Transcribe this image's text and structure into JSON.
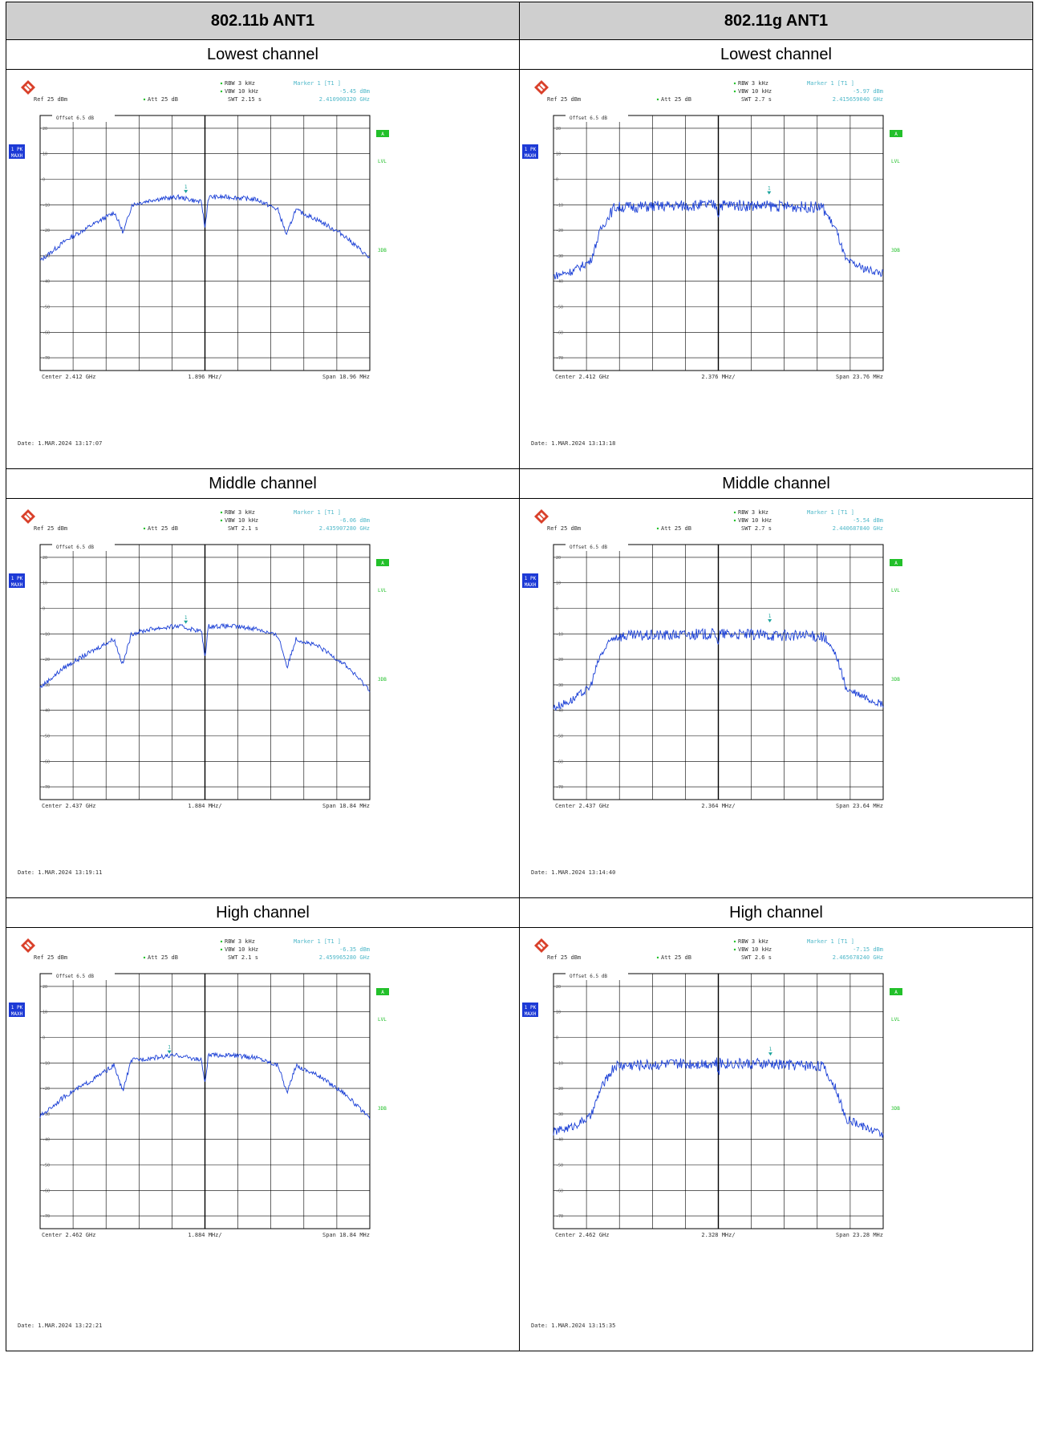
{
  "colors": {
    "header_bg": "#cfcfcf",
    "trace": "#1a3fd6",
    "marker": "#1ba39c",
    "readout": "#4fb8c9",
    "status_green": "#22c02a",
    "panel_blue": "#1d3ad6"
  },
  "columns": [
    "802.11b ANT1",
    "802.11g ANT1"
  ],
  "rows": [
    {
      "label": "Lowest channel",
      "plots": [
        {
          "rbw": "RBW 3 kHz",
          "vbw": "VBW 10 kHz",
          "swt": "SWT 2.15 s",
          "ref": "Ref  25 dBm",
          "att": "Att  25 dB",
          "marker_title": "Marker 1 [T1 ]",
          "marker_level": "-5.45 dBm",
          "marker_freq": "2.410900320 GHz",
          "offset": "Offset  6.5 dB",
          "center": "Center  2.412 GHz",
          "perdiv": "1.896 MHz/",
          "span": "Span  18.96 MHz",
          "date": "Date: 1.MAR.2024  13:17:07"
        },
        {
          "rbw": "RBW 3 kHz",
          "vbw": "VBW 10 kHz",
          "swt": "SWT 2.7 s",
          "ref": "Ref  25 dBm",
          "att": "Att  25 dB",
          "marker_title": "Marker 1 [T1 ]",
          "marker_level": "-5.97 dBm",
          "marker_freq": "2.415659040 GHz",
          "offset": "Offset  6.5 dB",
          "center": "Center  2.412 GHz",
          "perdiv": "2.376 MHz/",
          "span": "Span  23.76 MHz",
          "date": "Date: 1.MAR.2024  13:13:18"
        }
      ]
    },
    {
      "label": "Middle channel",
      "plots": [
        {
          "rbw": "RBW 3 kHz",
          "vbw": "VBW 10 kHz",
          "swt": "SWT 2.1 s",
          "ref": "Ref  25 dBm",
          "att": "Att  25 dB",
          "marker_title": "Marker 1 [T1 ]",
          "marker_level": "-6.06 dBm",
          "marker_freq": "2.435907280 GHz",
          "offset": "Offset  6.5 dB",
          "center": "Center  2.437 GHz",
          "perdiv": "1.884 MHz/",
          "span": "Span  18.84 MHz",
          "date": "Date: 1.MAR.2024  13:19:11"
        },
        {
          "rbw": "RBW 3 kHz",
          "vbw": "VBW 10 kHz",
          "swt": "SWT 2.7 s",
          "ref": "Ref  25 dBm",
          "att": "Att  25 dB",
          "marker_title": "Marker 1 [T1 ]",
          "marker_level": "-5.54 dBm",
          "marker_freq": "2.440687840 GHz",
          "offset": "Offset  6.5 dB",
          "center": "Center  2.437 GHz",
          "perdiv": "2.364 MHz/",
          "span": "Span  23.64 MHz",
          "date": "Date: 1.MAR.2024  13:14:40"
        }
      ]
    },
    {
      "label": "High channel",
      "plots": [
        {
          "rbw": "RBW 3 kHz",
          "vbw": "VBW 10 kHz",
          "swt": "SWT 2.1 s",
          "ref": "Ref  25 dBm",
          "att": "Att  25 dB",
          "marker_title": "Marker 1 [T1 ]",
          "marker_level": "-6.35 dBm",
          "marker_freq": "2.459965280 GHz",
          "offset": "Offset  6.5 dB",
          "center": "Center  2.462 GHz",
          "perdiv": "1.884 MHz/",
          "span": "Span  18.84 MHz",
          "date": "Date: 1.MAR.2024  13:22:21"
        },
        {
          "rbw": "RBW 3 kHz",
          "vbw": "VBW 10 kHz",
          "swt": "SWT 2.6 s",
          "ref": "Ref  25 dBm",
          "att": "Att  25 dB",
          "marker_title": "Marker 1 [T1 ]",
          "marker_level": "-7.15 dBm",
          "marker_freq": "2.465678240 GHz",
          "offset": "Offset  6.5 dB",
          "center": "Center  2.462 GHz",
          "perdiv": "2.328 MHz/",
          "span": "Span  23.28 MHz",
          "date": "Date: 1.MAR.2024  13:15:35"
        }
      ]
    }
  ],
  "panel_labels": {
    "trace_box_1": "1 PK",
    "trace_box_2": "MAXH",
    "a_box": "A",
    "lvl": "LVL",
    "tdb": "3DB",
    "marker_num": "1"
  },
  "chart_data": [
    {
      "type": "line",
      "standard": "802.11b",
      "ylim": [
        -75,
        25
      ],
      "xlim": [
        2402.52,
        2421.48
      ],
      "y_ticks": [
        20,
        10,
        0,
        -10,
        -20,
        -30,
        -40,
        -50,
        -60,
        -70
      ],
      "grid": true,
      "marker": {
        "x": 2410.90032,
        "y": -5.45
      },
      "series": [
        {
          "shape": "dsss",
          "x_center": 2412,
          "x": [
            2402.52,
            2404.0,
            2405.5,
            2406.8,
            2407.3,
            2407.8,
            2409.0,
            2410.5,
            2411.8,
            2412.0,
            2412.2,
            2413.5,
            2415.0,
            2416.2,
            2416.7,
            2417.2,
            2418.5,
            2420.0,
            2421.48
          ],
          "y": [
            -32,
            -24,
            -18,
            -13,
            -21,
            -10,
            -8,
            -7,
            -9,
            -19,
            -7,
            -7,
            -8,
            -12,
            -22,
            -12,
            -16,
            -22,
            -31
          ]
        }
      ]
    },
    {
      "type": "line",
      "standard": "802.11g",
      "ylim": [
        -75,
        25
      ],
      "xlim": [
        2400.12,
        2423.88
      ],
      "y_ticks": [
        20,
        10,
        0,
        -10,
        -20,
        -30,
        -40,
        -50,
        -60,
        -70
      ],
      "grid": true,
      "marker": {
        "x": 2415.65904,
        "y": -5.97
      },
      "series": [
        {
          "shape": "ofdm",
          "x_center": 2412,
          "x": [
            2400.12,
            2401.5,
            2402.8,
            2403.5,
            2404.5,
            2412.0,
            2419.5,
            2420.5,
            2421.2,
            2422.5,
            2423.88
          ],
          "y": [
            -38,
            -36,
            -32,
            -20,
            -11,
            -10,
            -11,
            -20,
            -32,
            -35,
            -37
          ]
        }
      ]
    },
    {
      "type": "line",
      "standard": "802.11b",
      "ylim": [
        -75,
        25
      ],
      "xlim": [
        2427.58,
        2446.42
      ],
      "y_ticks": [
        20,
        10,
        0,
        -10,
        -20,
        -30,
        -40,
        -50,
        -60,
        -70
      ],
      "grid": true,
      "marker": {
        "x": 2435.90728,
        "y": -6.06
      },
      "series": [
        {
          "shape": "dsss",
          "x_center": 2437,
          "x": [
            2427.58,
            2429.0,
            2430.5,
            2431.8,
            2432.3,
            2432.8,
            2434.0,
            2435.5,
            2436.8,
            2437.0,
            2437.2,
            2438.5,
            2440.0,
            2441.2,
            2441.7,
            2442.2,
            2443.5,
            2445.0,
            2446.42
          ],
          "y": [
            -31,
            -23,
            -17,
            -12,
            -22,
            -10,
            -8,
            -7,
            -9,
            -19,
            -7,
            -7,
            -8,
            -11,
            -23,
            -12,
            -15,
            -22,
            -32
          ]
        }
      ]
    },
    {
      "type": "line",
      "standard": "802.11g",
      "ylim": [
        -75,
        25
      ],
      "xlim": [
        2425.18,
        2448.82
      ],
      "y_ticks": [
        20,
        10,
        0,
        -10,
        -20,
        -30,
        -40,
        -50,
        -60,
        -70
      ],
      "grid": true,
      "marker": {
        "x": 2440.68784,
        "y": -5.54
      },
      "series": [
        {
          "shape": "ofdm",
          "x_center": 2437,
          "x": [
            2425.18,
            2426.5,
            2427.8,
            2428.5,
            2429.5,
            2437.0,
            2444.5,
            2445.5,
            2446.2,
            2447.5,
            2448.82
          ],
          "y": [
            -39,
            -36,
            -31,
            -19,
            -11,
            -10,
            -11,
            -19,
            -32,
            -35,
            -38
          ]
        }
      ]
    },
    {
      "type": "line",
      "standard": "802.11b",
      "ylim": [
        -75,
        25
      ],
      "xlim": [
        2452.58,
        2471.42
      ],
      "y_ticks": [
        20,
        10,
        0,
        -10,
        -20,
        -30,
        -40,
        -50,
        -60,
        -70
      ],
      "grid": true,
      "marker": {
        "x": 2459.96528,
        "y": -6.35
      },
      "series": [
        {
          "shape": "dsss",
          "x_center": 2462,
          "x": [
            2452.58,
            2454.0,
            2455.5,
            2456.8,
            2457.3,
            2457.8,
            2459.0,
            2460.5,
            2461.8,
            2462.0,
            2462.2,
            2463.5,
            2465.0,
            2466.2,
            2466.7,
            2467.2,
            2468.5,
            2470.0,
            2471.42
          ],
          "y": [
            -31,
            -23,
            -17,
            -11,
            -21,
            -9,
            -8,
            -7,
            -9,
            -18,
            -7,
            -7,
            -8,
            -11,
            -22,
            -11,
            -15,
            -22,
            -32
          ]
        }
      ]
    },
    {
      "type": "line",
      "standard": "802.11g",
      "ylim": [
        -75,
        25
      ],
      "xlim": [
        2450.36,
        2473.64
      ],
      "y_ticks": [
        20,
        10,
        0,
        -10,
        -20,
        -30,
        -40,
        -50,
        -60,
        -70
      ],
      "grid": true,
      "marker": {
        "x": 2465.67824,
        "y": -7.15
      },
      "series": [
        {
          "shape": "ofdm",
          "x_center": 2462,
          "x": [
            2450.36,
            2451.7,
            2453.0,
            2453.7,
            2454.7,
            2462.0,
            2469.3,
            2470.3,
            2471.0,
            2472.3,
            2473.64
          ],
          "y": [
            -37,
            -35,
            -31,
            -20,
            -11,
            -10,
            -11,
            -20,
            -32,
            -35,
            -38
          ]
        }
      ]
    }
  ]
}
